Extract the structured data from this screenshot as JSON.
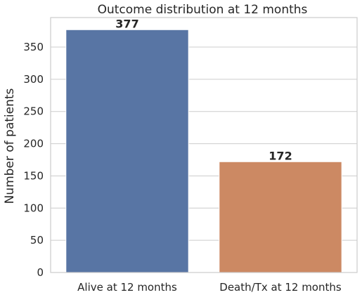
{
  "chart_data": {
    "type": "bar",
    "title": "Outcome distribution at 12 months",
    "xlabel": "",
    "ylabel": "Number of patients",
    "categories": [
      "Alive at 12 months",
      "Death/Tx at 12 months"
    ],
    "values": [
      377,
      172
    ],
    "value_labels": [
      "377",
      "172"
    ],
    "colors": [
      "#5875a4",
      "#cc8963"
    ],
    "ylim": [
      0,
      395.85
    ],
    "yticks": [
      0,
      50,
      100,
      150,
      200,
      250,
      300,
      350
    ],
    "ytick_labels": [
      "0",
      "50",
      "100",
      "150",
      "200",
      "250",
      "300",
      "350"
    ],
    "grid": "horizontal",
    "legend": "none"
  }
}
